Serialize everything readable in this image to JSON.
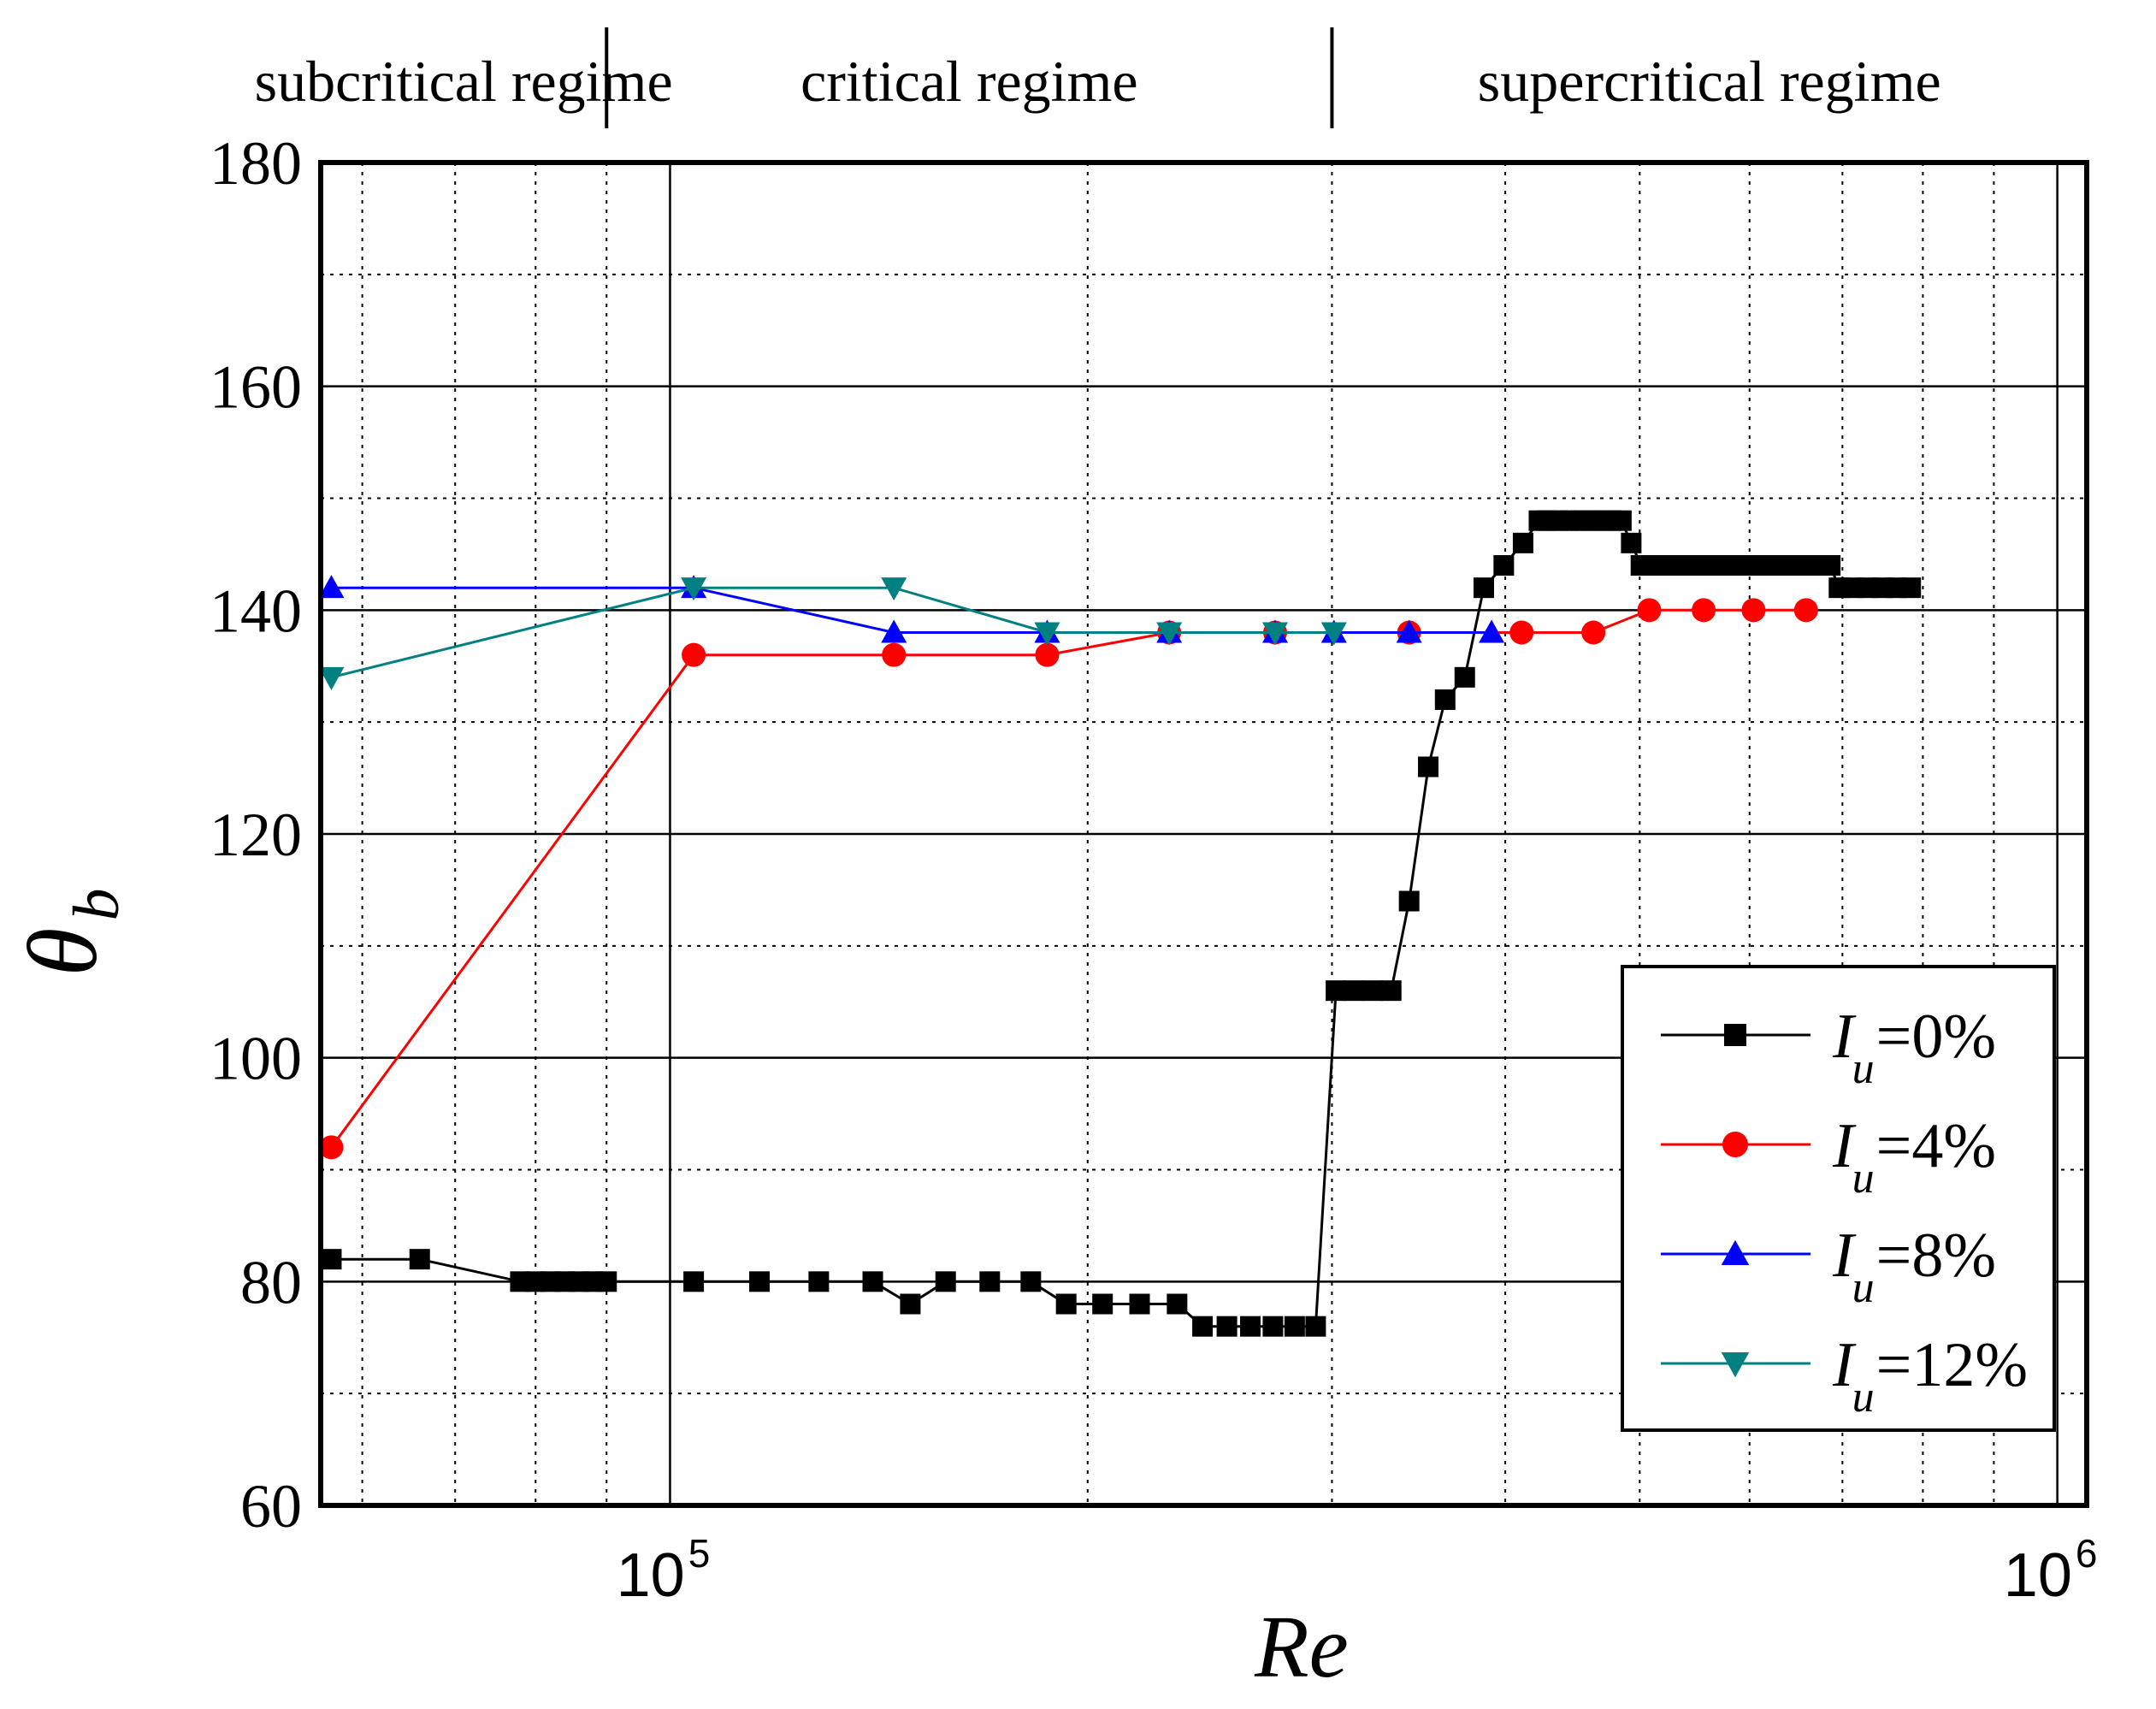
{
  "chart_data": {
    "type": "line",
    "title": "",
    "xlabel": "Re",
    "ylabel": "θ",
    "ylabel_subscript": "b",
    "x_scale": "log",
    "xlim": [
      56000,
      1050000
    ],
    "ylim": [
      60,
      180
    ],
    "x_ticks": [
      {
        "base": "10",
        "exp": "5",
        "value": 100000
      },
      {
        "base": "10",
        "exp": "6",
        "value": 1000000
      }
    ],
    "y_ticks": [
      60,
      80,
      100,
      120,
      140,
      160,
      180
    ],
    "regimes": [
      {
        "label": "subcritical regime",
        "from": 56000,
        "to": 90000
      },
      {
        "label": "critical regime",
        "from": 90000,
        "to": 300000
      },
      {
        "label": "supercritical regime",
        "from": 300000,
        "to": 1050000
      }
    ],
    "regime_boundaries": [
      90000,
      300000
    ],
    "grid": true,
    "legend_position": "lower-right",
    "series": [
      {
        "name": "I_u=0%",
        "legend_label": {
          "symbol": "I",
          "subscript": "u",
          "value": "=0%"
        },
        "color": "#000000",
        "marker": "square",
        "x": [
          57000,
          66000,
          78000,
          80000,
          82000,
          84000,
          86000,
          88000,
          90000,
          104000,
          116000,
          128000,
          140000,
          149000,
          158000,
          170000,
          182000,
          193000,
          205000,
          218000,
          232000,
          242000,
          252000,
          262000,
          272000,
          282000,
          292000,
          302000,
          311000,
          321000,
          331000,
          341000,
          352000,
          362000,
          374000,
          386000,
          399000,
          412000,
          423000,
          429000,
          437000,
          445000,
          453000,
          461000,
          469000,
          477000,
          485000,
          493000,
          501000,
          515000,
          528000,
          545000,
          563000,
          580000,
          597000,
          615000,
          633000,
          651000,
          668000,
          686000,
          696000,
          712000,
          730000,
          748000,
          766000,
          784000
        ],
        "y": [
          82,
          82,
          80,
          80,
          80,
          80,
          80,
          80,
          80,
          80,
          80,
          80,
          80,
          78,
          80,
          80,
          80,
          78,
          78,
          78,
          78,
          76,
          76,
          76,
          76,
          76,
          76,
          106,
          106,
          106,
          106,
          114,
          126,
          132,
          134,
          142,
          144,
          146,
          148,
          148,
          148,
          148,
          148,
          148,
          148,
          148,
          148,
          146,
          144,
          144,
          144,
          144,
          144,
          144,
          144,
          144,
          144,
          144,
          144,
          144,
          142,
          142,
          142,
          142,
          142,
          142
        ]
      },
      {
        "name": "I_u=4%",
        "legend_label": {
          "symbol": "I",
          "subscript": "u",
          "value": "=4%"
        },
        "color": "#ff0000",
        "marker": "circle",
        "x": [
          57000,
          104000,
          145000,
          187000,
          229000,
          273000,
          341000,
          411000,
          463000,
          508000,
          556000,
          604000,
          659000
        ],
        "y": [
          92,
          136,
          136,
          136,
          138,
          138,
          138,
          138,
          138,
          140,
          140,
          140,
          140
        ]
      },
      {
        "name": "I_u=8%",
        "legend_label": {
          "symbol": "I",
          "subscript": "u",
          "value": "=8%"
        },
        "color": "#0000ff",
        "marker": "triangle-up",
        "x": [
          57000,
          104000,
          145000,
          187000,
          229000,
          273000,
          301000,
          341000,
          391000
        ],
        "y": [
          142,
          142,
          138,
          138,
          138,
          138,
          138,
          138,
          138
        ]
      },
      {
        "name": "I_u=12%",
        "legend_label": {
          "symbol": "I",
          "subscript": "u",
          "value": "=12%"
        },
        "color": "#008080",
        "marker": "triangle-down",
        "x": [
          57000,
          104000,
          145000,
          187000,
          229000,
          273000,
          301000
        ],
        "y": [
          134,
          142,
          142,
          138,
          138,
          138,
          138
        ]
      }
    ]
  }
}
